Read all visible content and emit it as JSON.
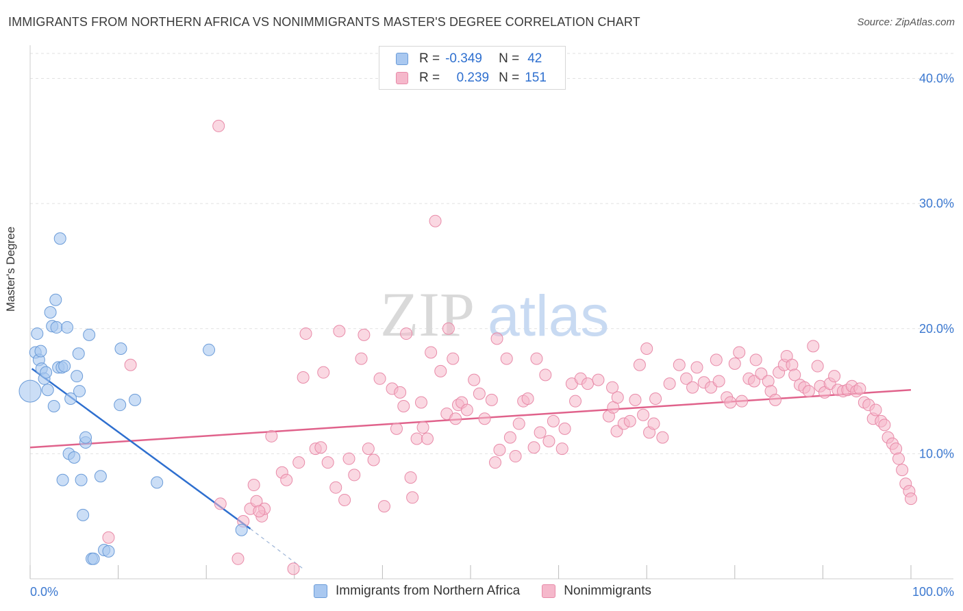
{
  "title": "IMMIGRANTS FROM NORTHERN AFRICA VS NONIMMIGRANTS MASTER'S DEGREE CORRELATION CHART",
  "source": "Source: ZipAtlas.com",
  "watermark": {
    "zip": "ZIP",
    "atlas": "atlas"
  },
  "legend": {
    "series1": {
      "r_label": "R =",
      "r_value": "-0.349",
      "n_label": "N =",
      "n_value": "42"
    },
    "series2": {
      "r_label": "R =",
      "r_value": "0.239",
      "n_label": "N =",
      "n_value": "151"
    }
  },
  "colors": {
    "blue_fill": "#a9c8f0",
    "blue_stroke": "#6a9bd8",
    "blue_line": "#2e6fcf",
    "pink_fill": "#f5b8cb",
    "pink_stroke": "#e88aa8",
    "pink_line": "#e0628b",
    "axis_text": "#3b78d0",
    "grid": "#e2e2e2"
  },
  "chart_data": {
    "type": "scatter",
    "title": "IMMIGRANTS FROM NORTHERN AFRICA VS NONIMMIGRANTS MASTER'S DEGREE CORRELATION CHART",
    "xlabel": "",
    "ylabel": "Master's Degree",
    "xlim": [
      0,
      100
    ],
    "ylim": [
      0,
      42
    ],
    "x_tick_labels": [
      "0.0%",
      "100.0%"
    ],
    "y_ticks": [
      10,
      20,
      30,
      40
    ],
    "y_tick_labels": [
      "10.0%",
      "20.0%",
      "30.0%",
      "40.0%"
    ],
    "series": [
      {
        "name": "Immigrants from Northern Africa",
        "color": "#a9c8f0",
        "points": [
          [
            0.0,
            15.0
          ],
          [
            0.6,
            18.1
          ],
          [
            1.0,
            17.5
          ],
          [
            0.8,
            19.6
          ],
          [
            1.2,
            18.2
          ],
          [
            1.3,
            16.8
          ],
          [
            1.6,
            16.0
          ],
          [
            1.8,
            16.5
          ],
          [
            2.0,
            15.1
          ],
          [
            2.3,
            21.3
          ],
          [
            2.5,
            20.2
          ],
          [
            2.7,
            13.8
          ],
          [
            2.9,
            22.3
          ],
          [
            3.0,
            20.1
          ],
          [
            3.2,
            16.9
          ],
          [
            3.4,
            27.2
          ],
          [
            3.6,
            16.9
          ],
          [
            3.7,
            7.9
          ],
          [
            3.9,
            17.0
          ],
          [
            4.2,
            20.1
          ],
          [
            4.4,
            10.0
          ],
          [
            4.6,
            14.4
          ],
          [
            5.0,
            9.7
          ],
          [
            5.3,
            16.2
          ],
          [
            5.5,
            18.0
          ],
          [
            5.6,
            15.0
          ],
          [
            5.8,
            7.9
          ],
          [
            6.0,
            5.1
          ],
          [
            6.3,
            10.9
          ],
          [
            6.3,
            11.3
          ],
          [
            6.7,
            19.5
          ],
          [
            7.0,
            1.6
          ],
          [
            7.2,
            1.6
          ],
          [
            8.0,
            8.2
          ],
          [
            8.4,
            2.3
          ],
          [
            8.9,
            2.2
          ],
          [
            10.2,
            13.9
          ],
          [
            10.3,
            18.4
          ],
          [
            11.9,
            14.3
          ],
          [
            14.4,
            7.7
          ],
          [
            20.3,
            18.3
          ],
          [
            24.0,
            3.9
          ]
        ],
        "trend": {
          "x1": 0.2,
          "y1": 16.8,
          "x2": 25.0,
          "y2": 4.0,
          "dash_to_x": 31.0,
          "dash_to_y": 0.8
        }
      },
      {
        "name": "Nonimmigrants",
        "color": "#f5b8cb",
        "points": [
          [
            21.4,
            36.2
          ],
          [
            46.0,
            28.6
          ],
          [
            11.4,
            17.1
          ],
          [
            8.9,
            3.3
          ],
          [
            21.6,
            6.0
          ],
          [
            23.6,
            1.6
          ],
          [
            24.2,
            4.6
          ],
          [
            25.0,
            5.6
          ],
          [
            25.4,
            7.5
          ],
          [
            25.7,
            6.2
          ],
          [
            26.3,
            5.0
          ],
          [
            26.6,
            5.6
          ],
          [
            27.4,
            11.4
          ],
          [
            28.6,
            8.5
          ],
          [
            29.1,
            7.9
          ],
          [
            29.9,
            0.8
          ],
          [
            30.5,
            9.3
          ],
          [
            31.0,
            16.1
          ],
          [
            31.3,
            19.6
          ],
          [
            32.4,
            10.4
          ],
          [
            33.0,
            10.5
          ],
          [
            33.8,
            9.3
          ],
          [
            34.7,
            7.3
          ],
          [
            35.1,
            19.8
          ],
          [
            35.7,
            6.3
          ],
          [
            36.2,
            9.6
          ],
          [
            36.8,
            8.3
          ],
          [
            37.6,
            17.6
          ],
          [
            37.9,
            19.5
          ],
          [
            38.4,
            10.4
          ],
          [
            39.0,
            9.5
          ],
          [
            39.7,
            16.0
          ],
          [
            40.2,
            5.8
          ],
          [
            41.1,
            15.2
          ],
          [
            41.6,
            12.0
          ],
          [
            42.0,
            14.9
          ],
          [
            42.4,
            13.8
          ],
          [
            42.7,
            19.6
          ],
          [
            43.2,
            8.1
          ],
          [
            43.4,
            6.5
          ],
          [
            43.9,
            11.2
          ],
          [
            44.4,
            14.1
          ],
          [
            44.6,
            12.1
          ],
          [
            45.1,
            11.2
          ],
          [
            45.5,
            18.1
          ],
          [
            46.6,
            16.6
          ],
          [
            47.3,
            13.2
          ],
          [
            47.5,
            20.0
          ],
          [
            48.0,
            17.6
          ],
          [
            48.3,
            12.8
          ],
          [
            48.6,
            13.9
          ],
          [
            49.0,
            14.1
          ],
          [
            49.6,
            13.5
          ],
          [
            50.4,
            15.9
          ],
          [
            51.0,
            14.8
          ],
          [
            51.6,
            12.8
          ],
          [
            52.4,
            14.3
          ],
          [
            52.8,
            9.3
          ],
          [
            53.0,
            19.2
          ],
          [
            53.3,
            10.3
          ],
          [
            54.1,
            17.6
          ],
          [
            54.5,
            11.3
          ],
          [
            55.1,
            9.8
          ],
          [
            55.5,
            12.4
          ],
          [
            56.0,
            14.2
          ],
          [
            56.5,
            14.4
          ],
          [
            57.2,
            10.5
          ],
          [
            57.5,
            17.6
          ],
          [
            57.9,
            11.7
          ],
          [
            58.5,
            16.3
          ],
          [
            58.9,
            11.0
          ],
          [
            59.4,
            12.6
          ],
          [
            60.4,
            10.4
          ],
          [
            60.7,
            12.0
          ],
          [
            61.5,
            15.6
          ],
          [
            61.9,
            14.2
          ],
          [
            62.5,
            16.0
          ],
          [
            63.3,
            15.6
          ],
          [
            64.5,
            15.9
          ],
          [
            65.7,
            13.0
          ],
          [
            66.1,
            15.3
          ],
          [
            66.2,
            13.7
          ],
          [
            66.6,
            11.8
          ],
          [
            66.7,
            14.5
          ],
          [
            67.4,
            12.4
          ],
          [
            68.1,
            12.6
          ],
          [
            68.7,
            14.3
          ],
          [
            69.2,
            17.1
          ],
          [
            69.6,
            13.1
          ],
          [
            70.0,
            18.4
          ],
          [
            70.3,
            11.7
          ],
          [
            70.8,
            12.4
          ],
          [
            71.0,
            14.4
          ],
          [
            71.8,
            11.3
          ],
          [
            72.6,
            15.6
          ],
          [
            73.7,
            17.1
          ],
          [
            74.5,
            16.0
          ],
          [
            75.2,
            15.3
          ],
          [
            75.7,
            16.9
          ],
          [
            76.5,
            15.7
          ],
          [
            77.3,
            15.3
          ],
          [
            77.9,
            17.5
          ],
          [
            78.2,
            15.8
          ],
          [
            79.1,
            14.5
          ],
          [
            79.5,
            14.1
          ],
          [
            80.0,
            17.2
          ],
          [
            80.5,
            18.1
          ],
          [
            80.8,
            14.2
          ],
          [
            81.6,
            16.0
          ],
          [
            82.2,
            15.8
          ],
          [
            82.4,
            17.5
          ],
          [
            83.0,
            16.4
          ],
          [
            83.8,
            15.8
          ],
          [
            84.1,
            15.0
          ],
          [
            84.6,
            14.3
          ],
          [
            85.0,
            16.5
          ],
          [
            85.6,
            17.1
          ],
          [
            85.9,
            17.8
          ],
          [
            86.5,
            17.1
          ],
          [
            86.8,
            16.3
          ],
          [
            87.4,
            15.5
          ],
          [
            87.9,
            15.3
          ],
          [
            88.4,
            15.0
          ],
          [
            88.9,
            18.6
          ],
          [
            89.4,
            17.0
          ],
          [
            89.7,
            15.4
          ],
          [
            90.2,
            14.9
          ],
          [
            90.8,
            15.6
          ],
          [
            91.3,
            16.2
          ],
          [
            91.7,
            15.1
          ],
          [
            92.3,
            15.0
          ],
          [
            92.8,
            15.1
          ],
          [
            93.3,
            15.4
          ],
          [
            93.8,
            15.0
          ],
          [
            94.2,
            15.2
          ],
          [
            94.7,
            14.1
          ],
          [
            95.2,
            13.9
          ],
          [
            95.7,
            12.8
          ],
          [
            96.0,
            13.5
          ],
          [
            96.6,
            12.6
          ],
          [
            97.0,
            12.3
          ],
          [
            97.4,
            11.3
          ],
          [
            97.9,
            10.8
          ],
          [
            98.3,
            10.4
          ],
          [
            98.6,
            9.6
          ],
          [
            99.0,
            8.7
          ],
          [
            99.4,
            7.6
          ],
          [
            99.8,
            7.0
          ],
          [
            100.0,
            6.4
          ],
          [
            26.0,
            5.4
          ],
          [
            33.3,
            16.5
          ]
        ],
        "trend": {
          "x1": 0.0,
          "y1": 10.5,
          "x2": 100.0,
          "y2": 15.1
        }
      }
    ]
  },
  "bottom_legend": [
    "Immigrants from Northern Africa",
    "Nonimmigrants"
  ]
}
